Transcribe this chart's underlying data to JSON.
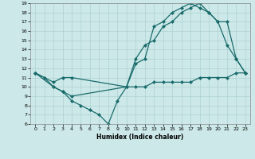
{
  "xlabel": "Humidex (Indice chaleur)",
  "background_color": "#cce8e8",
  "line_color": "#1a6b6b",
  "xlim": [
    -0.5,
    23.5
  ],
  "ylim": [
    6,
    19
  ],
  "yticks": [
    6,
    7,
    8,
    9,
    10,
    11,
    12,
    13,
    14,
    15,
    16,
    17,
    18,
    19
  ],
  "xticks": [
    0,
    1,
    2,
    3,
    4,
    5,
    6,
    7,
    8,
    9,
    10,
    11,
    12,
    13,
    14,
    15,
    16,
    17,
    18,
    19,
    20,
    21,
    22,
    23
  ],
  "line1_x": [
    0,
    1,
    2,
    3,
    4,
    5,
    6,
    7,
    8,
    9,
    10,
    11,
    12,
    13,
    14,
    15,
    16,
    17,
    18,
    19,
    20,
    21,
    22,
    23
  ],
  "line1_y": [
    11.5,
    11,
    10,
    9.5,
    8.5,
    8,
    7.5,
    7,
    6,
    8.5,
    10,
    10,
    10,
    10.5,
    10.5,
    10.5,
    10.5,
    10.5,
    11,
    11,
    11,
    11,
    11.5,
    11.5
  ],
  "line2_x": [
    0,
    2,
    3,
    4,
    10,
    11,
    12,
    13,
    14,
    15,
    16,
    17,
    18,
    19,
    20,
    21,
    22,
    23
  ],
  "line2_y": [
    11.5,
    10,
    9.5,
    9,
    10,
    12.5,
    13,
    16.5,
    17,
    18,
    18.5,
    19,
    18.5,
    18,
    17,
    14.5,
    13,
    11.5
  ],
  "line3_x": [
    0,
    2,
    3,
    4,
    10,
    11,
    12,
    13,
    14,
    15,
    16,
    17,
    18,
    19,
    20,
    21,
    22,
    23
  ],
  "line3_y": [
    11.5,
    10.5,
    11,
    11,
    10,
    13,
    14.5,
    15,
    16.5,
    17,
    18,
    18.5,
    19,
    18,
    17,
    17,
    13,
    11.5
  ],
  "markersize": 2.5,
  "linewidth": 0.9
}
